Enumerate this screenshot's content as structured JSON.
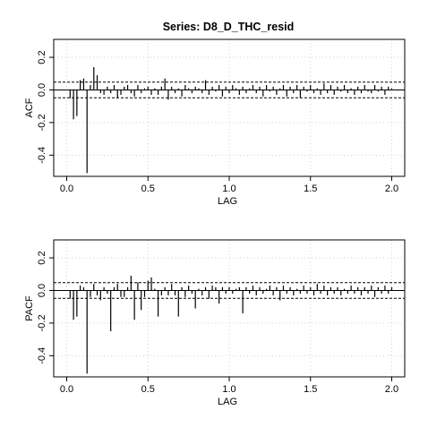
{
  "title": "Series:  D8_D_THC_resid",
  "chart_data": [
    {
      "type": "bar",
      "ylabel": "ACF",
      "xlabel": "LAG",
      "xlim": [
        -0.08,
        2.08
      ],
      "ylim": [
        -0.53,
        0.31
      ],
      "xticks": [
        0.0,
        0.5,
        1.0,
        1.5,
        2.0
      ],
      "xtick_labels": [
        "0.0",
        "0.5",
        "1.0",
        "1.5",
        "2.0"
      ],
      "yticks": [
        -0.4,
        -0.2,
        0.0,
        0.2
      ],
      "ytick_labels": [
        "-0.4",
        "-0.2",
        "0.0",
        "0.2"
      ],
      "grid": true,
      "ci": [
        0.048,
        -0.048
      ],
      "x": [
        0.0208,
        0.0417,
        0.0625,
        0.0833,
        0.1042,
        0.125,
        0.1458,
        0.1667,
        0.1875,
        0.2083,
        0.2292,
        0.25,
        0.2708,
        0.2917,
        0.3125,
        0.3333,
        0.3542,
        0.375,
        0.3958,
        0.4167,
        0.4375,
        0.4583,
        0.4792,
        0.5,
        0.5208,
        0.5417,
        0.5625,
        0.5833,
        0.6042,
        0.625,
        0.6458,
        0.6667,
        0.6875,
        0.7083,
        0.7292,
        0.75,
        0.7708,
        0.7917,
        0.8125,
        0.8333,
        0.8542,
        0.875,
        0.8958,
        0.9167,
        0.9375,
        0.9583,
        0.9792,
        1.0,
        1.0208,
        1.0417,
        1.0625,
        1.0833,
        1.1042,
        1.125,
        1.1458,
        1.1667,
        1.1875,
        1.2083,
        1.2292,
        1.25,
        1.2708,
        1.2917,
        1.3125,
        1.3333,
        1.3542,
        1.375,
        1.3958,
        1.4167,
        1.4375,
        1.4583,
        1.4792,
        1.5,
        1.5208,
        1.5417,
        1.5625,
        1.5833,
        1.6042,
        1.625,
        1.6458,
        1.6667,
        1.6875,
        1.7083,
        1.7292,
        1.75,
        1.7708,
        1.7917,
        1.8125,
        1.8333,
        1.8542,
        1.875,
        1.8958,
        1.9167,
        1.9375,
        1.9583,
        1.9792,
        2.0
      ],
      "values": [
        -0.05,
        -0.18,
        -0.16,
        0.06,
        0.07,
        -0.51,
        0.03,
        0.14,
        0.09,
        -0.02,
        -0.03,
        0.02,
        -0.02,
        0.03,
        -0.05,
        -0.03,
        0.02,
        0.03,
        -0.02,
        -0.04,
        0.03,
        -0.02,
        0.01,
        0.02,
        -0.03,
        0.01,
        -0.03,
        0.02,
        0.07,
        -0.06,
        0.02,
        -0.02,
        0.01,
        -0.04,
        0.03,
        0.01,
        -0.02,
        0.02,
        0.01,
        -0.02,
        0.06,
        -0.03,
        0.02,
        -0.01,
        0.03,
        -0.04,
        0.02,
        -0.02,
        0.03,
        0.01,
        -0.03,
        0.02,
        -0.02,
        0.01,
        0.03,
        -0.02,
        0.02,
        -0.04,
        0.03,
        -0.01,
        0.02,
        -0.03,
        0.01,
        0.03,
        -0.04,
        0.02,
        -0.02,
        0.03,
        -0.05,
        0.02,
        -0.01,
        0.03,
        -0.02,
        0.01,
        -0.03,
        0.04,
        -0.02,
        0.03,
        -0.03,
        0.02,
        -0.01,
        0.03,
        -0.02,
        0.01,
        -0.03,
        0.02,
        -0.02,
        0.03,
        -0.01,
        -0.02,
        0.03,
        -0.01,
        0.02,
        -0.03,
        0.02,
        0.01
      ]
    },
    {
      "type": "bar",
      "ylabel": "PACF",
      "xlabel": "LAG",
      "xlim": [
        -0.08,
        2.08
      ],
      "ylim": [
        -0.53,
        0.31
      ],
      "xticks": [
        0.0,
        0.5,
        1.0,
        1.5,
        2.0
      ],
      "xtick_labels": [
        "0.0",
        "0.5",
        "1.0",
        "1.5",
        "2.0"
      ],
      "yticks": [
        -0.4,
        -0.2,
        0.0,
        0.2
      ],
      "ytick_labels": [
        "-0.4",
        "-0.2",
        "0.0",
        "0.2"
      ],
      "grid": true,
      "ci": [
        0.048,
        -0.048
      ],
      "x": [
        0.0208,
        0.0417,
        0.0625,
        0.0833,
        0.1042,
        0.125,
        0.1458,
        0.1667,
        0.1875,
        0.2083,
        0.2292,
        0.25,
        0.2708,
        0.2917,
        0.3125,
        0.3333,
        0.3542,
        0.375,
        0.3958,
        0.4167,
        0.4375,
        0.4583,
        0.4792,
        0.5,
        0.5208,
        0.5417,
        0.5625,
        0.5833,
        0.6042,
        0.625,
        0.6458,
        0.6667,
        0.6875,
        0.7083,
        0.7292,
        0.75,
        0.7708,
        0.7917,
        0.8125,
        0.8333,
        0.8542,
        0.875,
        0.8958,
        0.9167,
        0.9375,
        0.9583,
        0.9792,
        1.0,
        1.0208,
        1.0417,
        1.0625,
        1.0833,
        1.1042,
        1.125,
        1.1458,
        1.1667,
        1.1875,
        1.2083,
        1.2292,
        1.25,
        1.2708,
        1.2917,
        1.3125,
        1.3333,
        1.3542,
        1.375,
        1.3958,
        1.4167,
        1.4375,
        1.4583,
        1.4792,
        1.5,
        1.5208,
        1.5417,
        1.5625,
        1.5833,
        1.6042,
        1.625,
        1.6458,
        1.6667,
        1.6875,
        1.7083,
        1.7292,
        1.75,
        1.7708,
        1.7917,
        1.8125,
        1.8333,
        1.8542,
        1.875,
        1.8958,
        1.9167,
        1.9375,
        1.9583,
        1.9792,
        2.0
      ],
      "values": [
        -0.05,
        -0.18,
        -0.16,
        0.03,
        0.02,
        -0.51,
        -0.04,
        0.04,
        -0.03,
        -0.06,
        0.02,
        -0.02,
        -0.25,
        0.02,
        0.04,
        -0.04,
        -0.04,
        0.02,
        0.09,
        -0.18,
        0.05,
        -0.12,
        -0.04,
        0.06,
        0.08,
        0.01,
        -0.16,
        -0.03,
        0.02,
        -0.03,
        0.04,
        -0.03,
        -0.16,
        0.02,
        -0.04,
        0.03,
        -0.02,
        -0.11,
        0.01,
        -0.03,
        0.02,
        -0.05,
        0.03,
        0.02,
        -0.08,
        0.02,
        -0.02,
        0.02,
        -0.02,
        0.01,
        0.02,
        -0.14,
        0.02,
        -0.02,
        0.03,
        -0.03,
        0.02,
        -0.02,
        0.01,
        0.03,
        -0.03,
        0.02,
        -0.06,
        0.03,
        -0.02,
        0.02,
        -0.03,
        0.01,
        -0.02,
        0.03,
        -0.02,
        0.02,
        -0.03,
        0.04,
        -0.02,
        0.03,
        -0.03,
        0.02,
        -0.02,
        0.02,
        -0.03,
        0.01,
        -0.02,
        0.03,
        -0.02,
        0.02,
        -0.03,
        0.02,
        -0.02,
        0.03,
        -0.04,
        0.02,
        -0.02,
        0.03,
        -0.02,
        0.02
      ]
    }
  ]
}
